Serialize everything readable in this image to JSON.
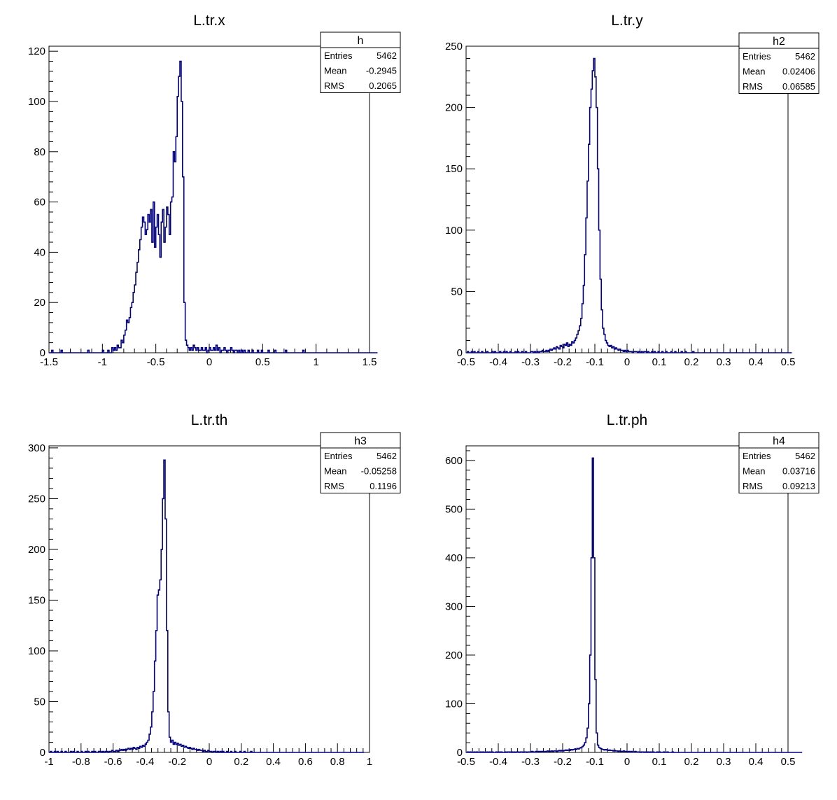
{
  "colors": {
    "line": "#000080",
    "frame": "#000000",
    "background": "#ffffff"
  },
  "chart_data": [
    {
      "type": "histogram",
      "title": "L.tr.x",
      "xlabel": "",
      "ylabel": "",
      "xlim": [
        -1.5,
        1.5
      ],
      "ylim": [
        0,
        122
      ],
      "xticks": [
        "-1.5",
        "-1",
        "-0.5",
        "0",
        "0.5",
        "1",
        "1.5"
      ],
      "yticks": [
        "0",
        "20",
        "40",
        "60",
        "80",
        "100",
        "120"
      ],
      "stats": {
        "name": "h",
        "rows": [
          {
            "label": "Entries",
            "value": "5462"
          },
          {
            "label": "Mean",
            "value": "-0.2945"
          },
          {
            "label": "RMS",
            "value": "0.2065"
          }
        ]
      },
      "bins": {
        "x0": -1.5,
        "width": 0.0125
      },
      "values": [
        0,
        0,
        1,
        0,
        0,
        0,
        0,
        0,
        0,
        1,
        0,
        0,
        0,
        0,
        0,
        0,
        0,
        0,
        0,
        0,
        0,
        0,
        0,
        0,
        0,
        0,
        0,
        0,
        0,
        1,
        0,
        0,
        0,
        0,
        0,
        0,
        0,
        0,
        0,
        0,
        1,
        0,
        0,
        0,
        1,
        0,
        0,
        2,
        1,
        2,
        1,
        3,
        2,
        2,
        5,
        4,
        7,
        9,
        13,
        12,
        14,
        18,
        20,
        24,
        27,
        32,
        36,
        41,
        45,
        50,
        54,
        52,
        47,
        49,
        55,
        52,
        57,
        44,
        60,
        42,
        50,
        55,
        47,
        38,
        52,
        57,
        44,
        50,
        58,
        55,
        47,
        60,
        62,
        80,
        76,
        86,
        102,
        110,
        116,
        100,
        70,
        20,
        5,
        3,
        2,
        1,
        2,
        1,
        3,
        2,
        1,
        2,
        1,
        1,
        2,
        1,
        1,
        2,
        0,
        1,
        2,
        1,
        1,
        2,
        1,
        3,
        1,
        2,
        0,
        1,
        1,
        2,
        1,
        0,
        1,
        1,
        2,
        1,
        0,
        1,
        1,
        0,
        1,
        0,
        1,
        0,
        1,
        0,
        0,
        1,
        0,
        0,
        1,
        0,
        0,
        0,
        1,
        0,
        0,
        1,
        0,
        0,
        0,
        0,
        1,
        0,
        0,
        0,
        0,
        1,
        0,
        0,
        0,
        0,
        0,
        0,
        0,
        1,
        0,
        0,
        0,
        0,
        0,
        0,
        0,
        0,
        0,
        0,
        0,
        0,
        1,
        0,
        0,
        0,
        0,
        0,
        0,
        0,
        0,
        0,
        0,
        0,
        0,
        0,
        0,
        0,
        0,
        0,
        0,
        0,
        0,
        0,
        0,
        0,
        0,
        0,
        0,
        0,
        0,
        0,
        0,
        0,
        0,
        0,
        0,
        0,
        0,
        0,
        0,
        0,
        0,
        0,
        0,
        0,
        0,
        0,
        0,
        0,
        0,
        0,
        0,
        0,
        0,
        0,
        0,
        0,
        0
      ]
    },
    {
      "type": "histogram",
      "title": "L.tr.y",
      "xlabel": "",
      "ylabel": "",
      "xlim": [
        -0.5,
        0.5
      ],
      "ylim": [
        0,
        250
      ],
      "xticks": [
        "-0.5",
        "-0.4",
        "-0.3",
        "-0.2",
        "-0.1",
        "0",
        "0.1",
        "0.2",
        "0.3",
        "0.4",
        "0.5"
      ],
      "yticks": [
        "0",
        "50",
        "100",
        "150",
        "200",
        "250"
      ],
      "stats": {
        "name": "h2",
        "rows": [
          {
            "label": "Entries",
            "value": "5462"
          },
          {
            "label": "Mean",
            "value": "0.02406"
          },
          {
            "label": "RMS",
            "value": "0.06585"
          }
        ]
      },
      "bins": {
        "x0": -0.5,
        "width": 0.004
      },
      "values": [
        0,
        1,
        0,
        0,
        1,
        0,
        1,
        0,
        0,
        1,
        0,
        0,
        1,
        0,
        0,
        0,
        1,
        0,
        0,
        0,
        1,
        0,
        1,
        0,
        0,
        0,
        1,
        0,
        0,
        1,
        0,
        1,
        0,
        0,
        1,
        0,
        0,
        0,
        1,
        0,
        1,
        0,
        0,
        1,
        0,
        0,
        1,
        0,
        0,
        0,
        1,
        1,
        0,
        1,
        0,
        1,
        0,
        1,
        1,
        2,
        1,
        1,
        2,
        1,
        2,
        3,
        2,
        3,
        4,
        3,
        5,
        4,
        3,
        6,
        5,
        4,
        7,
        6,
        8,
        5,
        7,
        6,
        9,
        8,
        10,
        12,
        15,
        18,
        22,
        28,
        40,
        55,
        80,
        110,
        140,
        170,
        200,
        215,
        230,
        240,
        225,
        200,
        150,
        100,
        60,
        35,
        20,
        15,
        10,
        8,
        6,
        5,
        6,
        4,
        5,
        3,
        4,
        3,
        2,
        3,
        2,
        2,
        1,
        2,
        1,
        2,
        1,
        1,
        1,
        0,
        1,
        1,
        1,
        0,
        1,
        0,
        1,
        0,
        1,
        1,
        0,
        1,
        0,
        0,
        1,
        0,
        1,
        0,
        0,
        1,
        0,
        0,
        1,
        0,
        0,
        1,
        0,
        0,
        0,
        1,
        0,
        0,
        1,
        0,
        0,
        0,
        0,
        1,
        0,
        0,
        1,
        0,
        0,
        0,
        0,
        0,
        1,
        0,
        0,
        0,
        0,
        0,
        0,
        0,
        0,
        0,
        0,
        0,
        0,
        0,
        0,
        0,
        0,
        0,
        0,
        0,
        0,
        0,
        0,
        0,
        0,
        0,
        0,
        0,
        0,
        0,
        0,
        0,
        0,
        0,
        0,
        0,
        0,
        0,
        0,
        0,
        0,
        0,
        0,
        0,
        0,
        0,
        0,
        0,
        0,
        0,
        0,
        0,
        0,
        0,
        0,
        0,
        0,
        0,
        0,
        0,
        0,
        0,
        0,
        0,
        0,
        0,
        0,
        0,
        0,
        0,
        0,
        0,
        0,
        0,
        0,
        0,
        0,
        0
      ]
    },
    {
      "type": "histogram",
      "title": "L.tr.th",
      "xlabel": "",
      "ylabel": "",
      "xlim": [
        -1,
        1
      ],
      "ylim": [
        0,
        302
      ],
      "xticks": [
        "-1",
        "-0.8",
        "-0.6",
        "-0.4",
        "-0.2",
        "0",
        "0.2",
        "0.4",
        "0.6",
        "0.8",
        "1"
      ],
      "yticks": [
        "0",
        "50",
        "100",
        "150",
        "200",
        "250",
        "300"
      ],
      "stats": {
        "name": "h3",
        "rows": [
          {
            "label": "Entries",
            "value": "5462"
          },
          {
            "label": "Mean",
            "value": "-0.05258"
          },
          {
            "label": "RMS",
            "value": "0.1196"
          }
        ]
      },
      "bins": {
        "x0": -1.0,
        "width": 0.00833
      },
      "values": [
        0,
        1,
        0,
        0,
        1,
        0,
        1,
        0,
        0,
        1,
        0,
        0,
        1,
        0,
        0,
        0,
        1,
        0,
        1,
        0,
        0,
        1,
        0,
        0,
        1,
        0,
        0,
        1,
        0,
        1,
        0,
        0,
        1,
        0,
        1,
        0,
        0,
        1,
        1,
        0,
        1,
        0,
        1,
        1,
        0,
        1,
        1,
        2,
        1,
        1,
        2,
        1,
        2,
        2,
        3,
        2,
        3,
        2,
        3,
        4,
        3,
        4,
        3,
        5,
        4,
        3,
        5,
        4,
        6,
        5,
        7,
        6,
        8,
        10,
        12,
        18,
        25,
        40,
        60,
        90,
        120,
        155,
        160,
        170,
        200,
        250,
        288,
        230,
        120,
        40,
        15,
        10,
        12,
        8,
        10,
        8,
        9,
        7,
        8,
        6,
        7,
        5,
        6,
        5,
        4,
        5,
        4,
        3,
        4,
        3,
        3,
        2,
        3,
        2,
        2,
        1,
        2,
        1,
        1,
        2,
        1,
        1,
        0,
        1,
        1,
        0,
        1,
        0,
        1,
        0,
        1,
        0,
        0,
        1,
        0,
        0,
        1,
        0,
        0,
        1,
        0,
        0,
        0,
        1,
        0,
        0,
        1,
        0,
        0,
        0,
        0,
        1,
        0,
        0,
        0,
        0,
        0,
        0,
        0,
        0,
        0,
        0,
        0,
        0,
        0,
        0,
        0,
        0,
        0,
        0,
        0,
        0,
        0,
        0,
        0,
        0,
        0,
        0,
        0,
        0,
        0,
        0,
        0,
        0,
        0,
        0,
        0,
        0,
        0,
        0,
        0,
        0,
        0,
        0,
        0,
        0,
        0,
        0,
        0,
        0,
        0,
        0,
        0,
        0,
        0,
        0,
        0,
        0,
        0,
        0,
        0,
        0,
        0,
        0,
        0,
        0,
        0,
        0,
        0,
        0,
        0,
        0,
        0,
        0,
        0,
        0,
        0,
        0,
        0,
        0,
        0,
        0,
        0,
        0,
        0,
        0
      ]
    },
    {
      "type": "histogram",
      "title": "L.tr.ph",
      "xlabel": "",
      "ylabel": "",
      "xlim": [
        -0.5,
        0.5
      ],
      "ylim": [
        0,
        630
      ],
      "xticks": [
        "-0.5",
        "-0.4",
        "-0.3",
        "-0.2",
        "-0.1",
        "0",
        "0.1",
        "0.2",
        "0.3",
        "0.4",
        "0.5"
      ],
      "yticks": [
        "0",
        "100",
        "200",
        "300",
        "400",
        "500",
        "600"
      ],
      "stats": {
        "name": "h4",
        "rows": [
          {
            "label": "Entries",
            "value": "5462"
          },
          {
            "label": "Mean",
            "value": "0.03716"
          },
          {
            "label": "RMS",
            "value": "0.09213"
          }
        ]
      },
      "bins": {
        "x0": -0.5,
        "width": 0.004
      },
      "values": [
        0,
        1,
        0,
        1,
        0,
        0,
        1,
        0,
        1,
        0,
        0,
        1,
        0,
        1,
        0,
        0,
        1,
        0,
        1,
        0,
        1,
        0,
        0,
        1,
        0,
        1,
        0,
        1,
        0,
        0,
        1,
        0,
        1,
        1,
        0,
        1,
        0,
        1,
        0,
        1,
        1,
        0,
        1,
        1,
        0,
        1,
        1,
        0,
        1,
        1,
        1,
        2,
        1,
        1,
        2,
        1,
        2,
        1,
        2,
        2,
        1,
        2,
        2,
        3,
        2,
        2,
        3,
        2,
        3,
        3,
        2,
        3,
        4,
        3,
        4,
        3,
        4,
        5,
        4,
        5,
        4,
        6,
        5,
        6,
        7,
        6,
        8,
        7,
        9,
        10,
        12,
        15,
        20,
        30,
        50,
        100,
        200,
        400,
        605,
        400,
        150,
        40,
        15,
        10,
        8,
        7,
        6,
        5,
        6,
        5,
        4,
        5,
        4,
        4,
        3,
        4,
        3,
        3,
        2,
        3,
        2,
        2,
        3,
        2,
        2,
        1,
        2,
        1,
        2,
        1,
        1,
        2,
        1,
        1,
        1,
        0,
        1,
        1,
        0,
        1,
        0,
        1,
        0,
        1,
        0,
        1,
        0,
        0,
        1,
        0,
        1,
        0,
        0,
        1,
        0,
        0,
        1,
        0,
        0,
        0,
        1,
        0,
        0,
        0,
        0,
        0,
        0,
        0,
        0,
        0,
        0,
        0,
        0,
        0,
        0,
        0,
        0,
        0,
        0,
        0,
        0,
        0,
        0,
        0,
        0,
        0,
        0,
        0,
        0,
        0,
        0,
        0,
        0,
        0,
        0,
        0,
        0,
        0,
        0,
        0,
        0,
        0,
        0,
        0,
        0,
        0,
        0,
        0,
        0,
        0,
        0,
        0,
        0,
        0,
        0,
        0,
        0,
        0,
        0,
        0,
        0,
        0,
        0,
        0,
        0,
        0,
        0,
        0,
        0,
        0,
        0,
        0,
        0,
        0,
        0,
        0,
        0,
        0,
        0,
        0,
        0,
        0,
        0,
        0,
        0,
        0,
        0,
        0,
        0,
        0,
        0,
        0,
        0,
        0,
        0,
        0,
        0,
        0,
        0,
        0,
        0,
        0
      ]
    }
  ]
}
